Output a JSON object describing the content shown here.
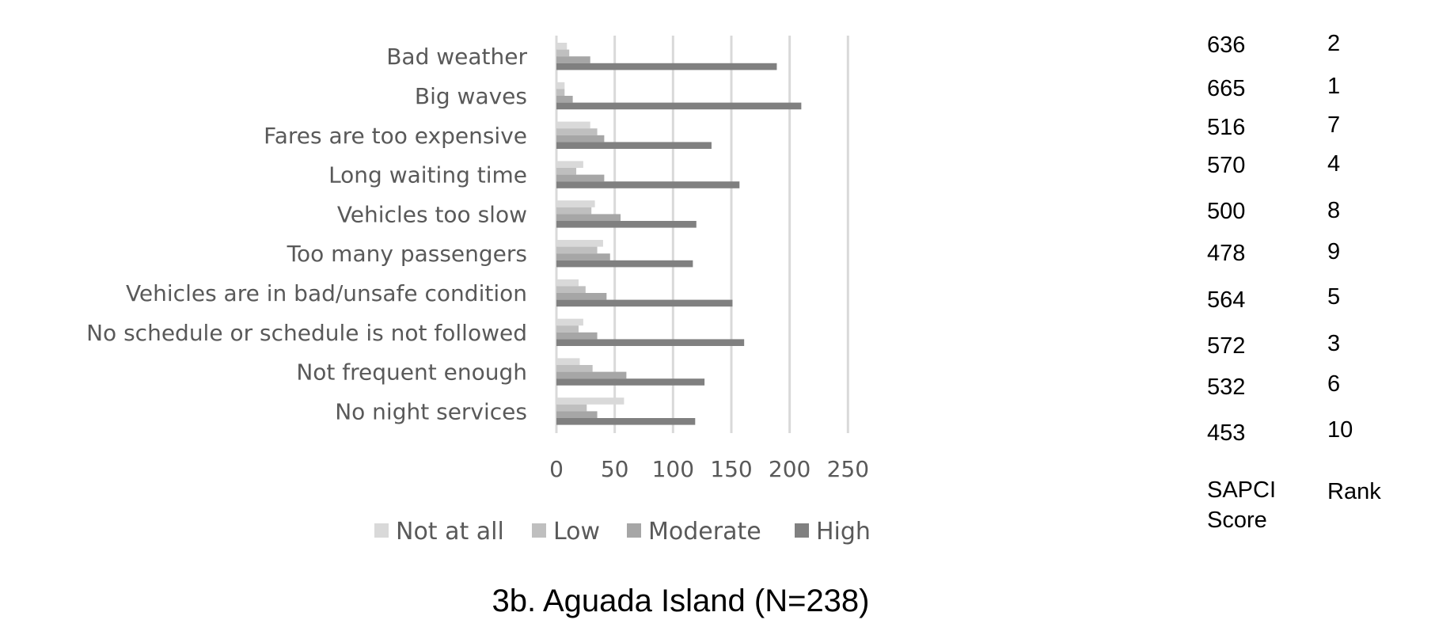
{
  "chart_data": {
    "type": "bar",
    "orientation": "horizontal",
    "title": "3b. Aguada Island (N=238)",
    "categories": [
      "Bad weather",
      "Big waves",
      "Fares are too expensive",
      "Long waiting time",
      "Vehicles too slow",
      "Too many passengers",
      "Vehicles are in bad/unsafe condition",
      "No schedule or schedule is not followed",
      "Not frequent enough",
      "No night services"
    ],
    "series": [
      {
        "name": "Not at all",
        "color": "#d9d9d9",
        "values": [
          9,
          7,
          29,
          23,
          33,
          40,
          19,
          23,
          20,
          58
        ]
      },
      {
        "name": "Low",
        "color": "#bfbfbf",
        "values": [
          11,
          7,
          35,
          17,
          30,
          35,
          25,
          19,
          31,
          26
        ]
      },
      {
        "name": "Moderate",
        "color": "#a6a6a6",
        "values": [
          29,
          14,
          41,
          41,
          55,
          46,
          43,
          35,
          60,
          35
        ]
      },
      {
        "name": "High",
        "color": "#808080",
        "values": [
          189,
          210,
          133,
          157,
          120,
          117,
          151,
          161,
          127,
          119
        ]
      }
    ],
    "xlim": [
      0,
      250
    ],
    "xticks": [
      "0",
      "50",
      "100",
      "150",
      "200",
      "250"
    ],
    "grid": true,
    "legend_position": "bottom",
    "sapci_header": [
      "SAPCI",
      "Score"
    ],
    "rank_header": "Rank",
    "sapci_scores": [
      "636",
      "665",
      "516",
      "570",
      "500",
      "478",
      "564",
      "572",
      "532",
      "453"
    ],
    "ranks": [
      "2",
      "1",
      "7",
      "4",
      "8",
      "9",
      "5",
      "3",
      "6",
      "10"
    ]
  }
}
